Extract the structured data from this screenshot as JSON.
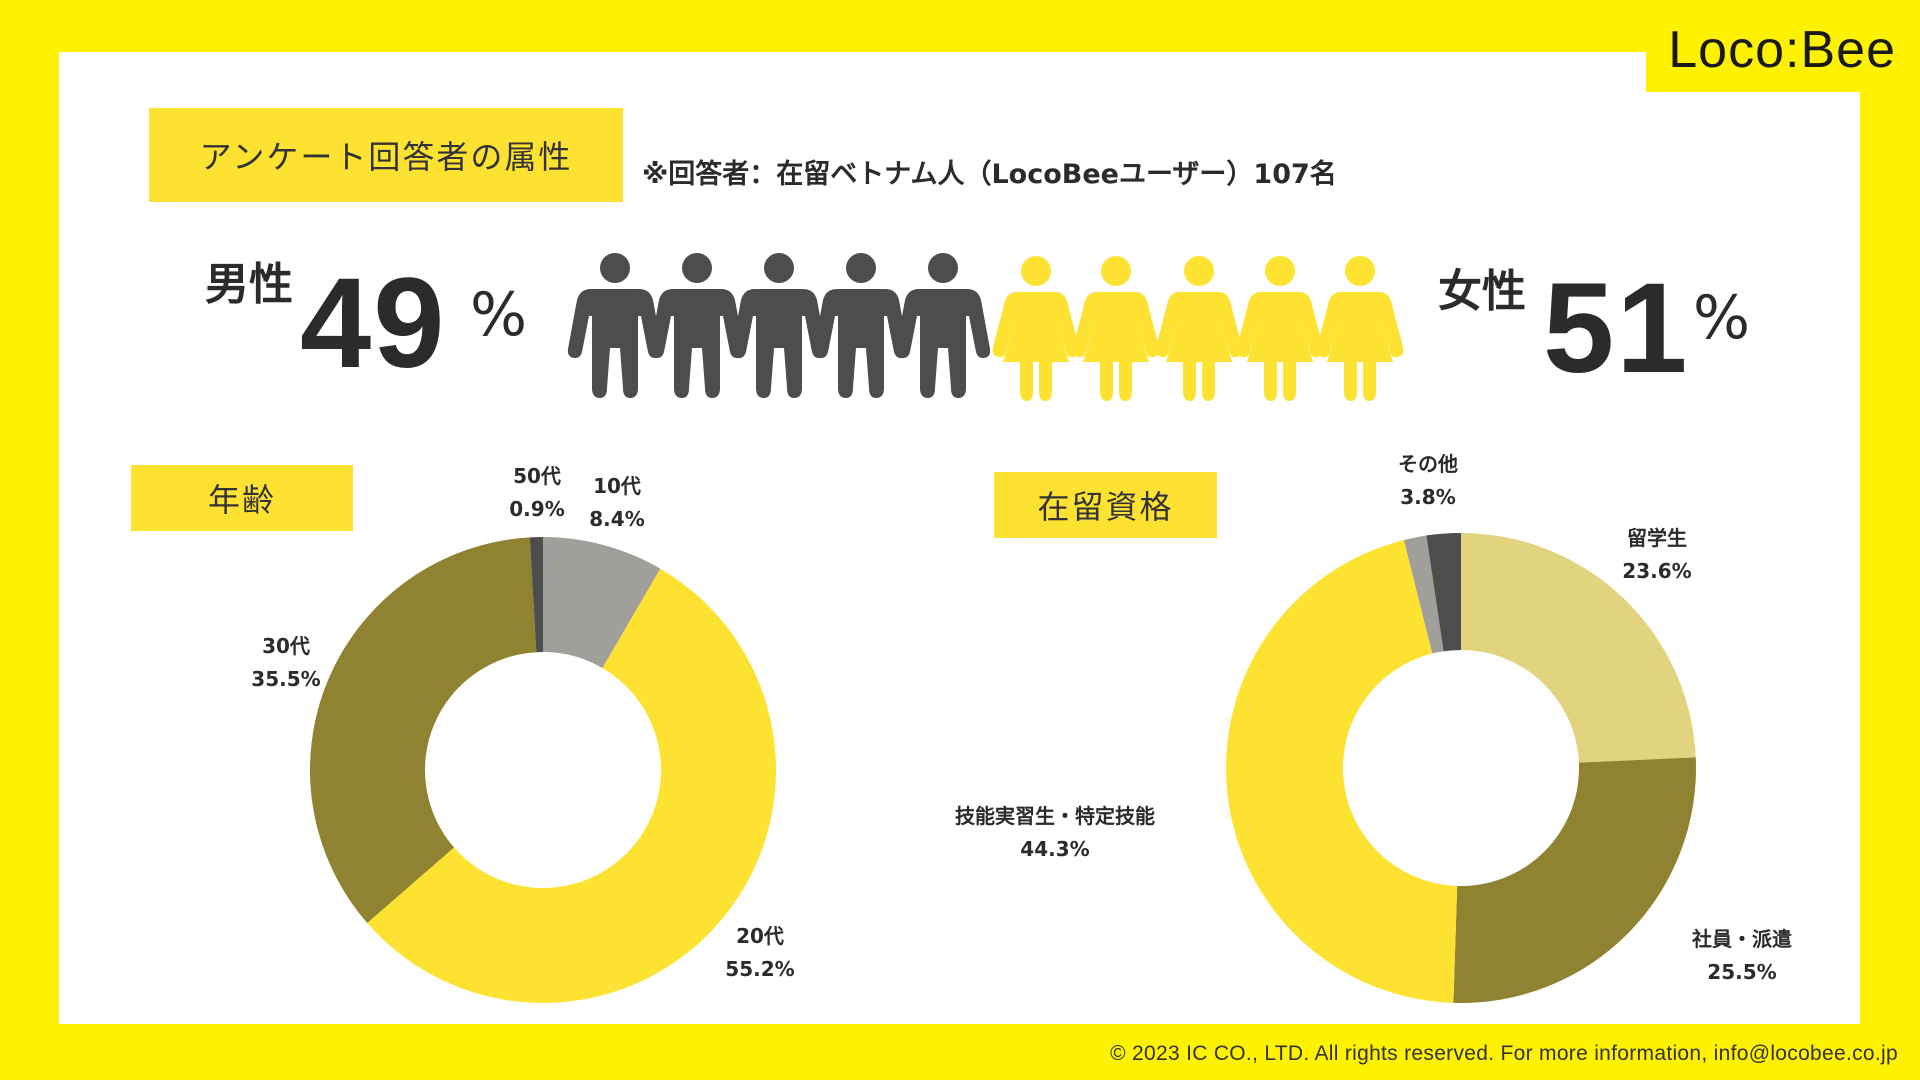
{
  "brand": {
    "logo_text": "Loco:Bee"
  },
  "header": {
    "title_tag": "アンケート回答者の属性",
    "respondents_note": "※回答者：在留ベトナム人（LocoBeeユーザー）107名"
  },
  "gender": {
    "male_label": "男性",
    "male_value": "49",
    "female_label": "女性",
    "female_value": "51",
    "percent_sign": "%",
    "male_color": "#4d4d4d",
    "female_color": "#fde232"
  },
  "chart_data": [
    {
      "type": "pie",
      "title": "年齢",
      "categories": [
        "10代",
        "20代",
        "30代",
        "50代"
      ],
      "values": [
        8.4,
        55.2,
        35.5,
        0.9
      ],
      "value_labels": [
        "8.4%",
        "55.2%",
        "35.5%",
        "0.9%"
      ],
      "colors": [
        "#a09f9a",
        "#fde232",
        "#8f8230",
        "#4d4d4d"
      ],
      "donut": true
    },
    {
      "type": "pie",
      "title": "在留資格",
      "categories": [
        "留学生",
        "社員・派遣",
        "技能実習生・特定技能",
        "その他"
      ],
      "values": [
        23.6,
        25.5,
        44.3,
        3.8
      ],
      "value_labels": [
        "23.6%",
        "25.5%",
        "44.3%",
        "3.8%"
      ],
      "colors": [
        "#e2d47f",
        "#8f8230",
        "#fde232",
        "#a09f9a"
      ],
      "extra_wedge_color": "#4d4d4d",
      "donut": true
    }
  ],
  "footer": {
    "copyright": "© 2023 IC CO., LTD. All rights reserved. For more information, info@locobee.co.jp"
  }
}
